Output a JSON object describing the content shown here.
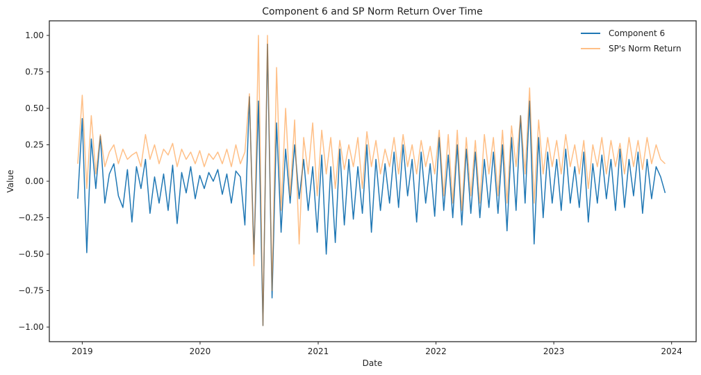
{
  "chart_data": {
    "type": "line",
    "title": "Component 6 and SP Norm Return Over Time",
    "xlabel": "Date",
    "ylabel": "Value",
    "xlim": [
      "2018-09-21",
      "2024-03-17"
    ],
    "ylim": [
      -1.1,
      1.1
    ],
    "xticks": [
      {
        "label": "2019",
        "date": "2019-01-01"
      },
      {
        "label": "2020",
        "date": "2020-01-01"
      },
      {
        "label": "2021",
        "date": "2021-01-01"
      },
      {
        "label": "2022",
        "date": "2022-01-01"
      },
      {
        "label": "2023",
        "date": "2023-01-01"
      },
      {
        "label": "2024",
        "date": "2024-01-01"
      }
    ],
    "yticks": [
      1.0,
      0.75,
      0.5,
      0.25,
      0.0,
      -0.25,
      -0.5,
      -0.75,
      -1.0
    ],
    "ytick_labels": [
      "1.00",
      "0.75",
      "0.50",
      "0.25",
      "0.00",
      "−0.25",
      "−0.50",
      "−0.75",
      "−1.00"
    ],
    "grid": false,
    "legend_position": "top-right",
    "x_start": "2018-12-18",
    "x_end": "2023-12-18",
    "series": [
      {
        "name": "Component 6",
        "color": "#1f77b4",
        "opacity": 1.0,
        "stride_days": 14,
        "values": [
          -0.12,
          0.43,
          -0.49,
          0.29,
          -0.05,
          0.31,
          -0.15,
          0.05,
          0.12,
          -0.1,
          -0.18,
          0.08,
          -0.28,
          0.1,
          -0.05,
          0.15,
          -0.22,
          0.03,
          -0.15,
          0.05,
          -0.2,
          0.11,
          -0.29,
          0.06,
          -0.08,
          0.1,
          -0.12,
          0.04,
          -0.05,
          0.06,
          0.0,
          0.08,
          -0.09,
          0.05,
          -0.15,
          0.07,
          0.03,
          -0.3,
          0.58,
          -0.5,
          0.55,
          -0.99,
          0.94,
          -0.8,
          0.4,
          -0.35,
          0.22,
          -0.15,
          0.25,
          -0.12,
          0.15,
          -0.2,
          0.1,
          -0.35,
          0.18,
          -0.5,
          0.1,
          -0.42,
          0.22,
          -0.3,
          0.15,
          -0.26,
          0.1,
          -0.22,
          0.25,
          -0.35,
          0.15,
          -0.2,
          0.12,
          -0.15,
          0.2,
          -0.18,
          0.25,
          -0.1,
          0.15,
          -0.28,
          0.2,
          -0.15,
          0.12,
          -0.24,
          0.3,
          -0.2,
          0.18,
          -0.25,
          0.25,
          -0.3,
          0.22,
          -0.22,
          0.2,
          -0.25,
          0.15,
          -0.18,
          0.2,
          -0.22,
          0.25,
          -0.34,
          0.3,
          -0.2,
          0.45,
          -0.15,
          0.55,
          -0.43,
          0.3,
          -0.25,
          0.2,
          -0.15,
          0.15,
          -0.2,
          0.22,
          -0.15,
          0.1,
          -0.18,
          0.2,
          -0.28,
          0.12,
          -0.15,
          0.18,
          -0.12,
          0.15,
          -0.2,
          0.22,
          -0.18,
          0.15,
          -0.1,
          0.2,
          -0.22,
          0.15,
          -0.12,
          0.1,
          0.03,
          -0.08
        ]
      },
      {
        "name": "SP's Norm Return",
        "color": "#ff7f0e",
        "opacity": 0.5,
        "stride_days": 14,
        "values": [
          0.12,
          0.59,
          -0.05,
          0.45,
          0.05,
          0.32,
          0.1,
          0.2,
          0.25,
          0.12,
          0.22,
          0.15,
          0.18,
          0.2,
          0.1,
          0.32,
          0.15,
          0.25,
          0.12,
          0.22,
          0.18,
          0.26,
          0.1,
          0.22,
          0.15,
          0.2,
          0.12,
          0.21,
          0.1,
          0.19,
          0.15,
          0.2,
          0.12,
          0.22,
          0.1,
          0.25,
          0.12,
          0.2,
          0.6,
          -0.58,
          1.0,
          -0.99,
          1.0,
          -0.75,
          0.78,
          -0.2,
          0.5,
          -0.1,
          0.42,
          -0.43,
          0.3,
          0.05,
          0.4,
          -0.1,
          0.35,
          0.05,
          0.3,
          -0.05,
          0.28,
          0.08,
          0.25,
          0.1,
          0.3,
          -0.05,
          0.34,
          0.1,
          0.28,
          0.05,
          0.22,
          0.1,
          0.3,
          0.05,
          0.32,
          0.1,
          0.25,
          0.05,
          0.28,
          0.1,
          0.24,
          0.05,
          0.35,
          -0.1,
          0.32,
          -0.15,
          0.35,
          -0.2,
          0.3,
          -0.1,
          0.28,
          -0.15,
          0.32,
          0.05,
          0.3,
          -0.1,
          0.35,
          -0.15,
          0.38,
          0.1,
          0.45,
          0.05,
          0.64,
          -0.15,
          0.42,
          0.05,
          0.3,
          0.1,
          0.28,
          0.05,
          0.32,
          0.1,
          0.25,
          0.05,
          0.28,
          -0.05,
          0.25,
          0.1,
          0.3,
          0.05,
          0.28,
          0.1,
          0.26,
          0.05,
          0.3,
          0.1,
          0.28,
          0.08,
          0.3,
          0.12,
          0.25,
          0.15,
          0.12
        ]
      }
    ]
  }
}
